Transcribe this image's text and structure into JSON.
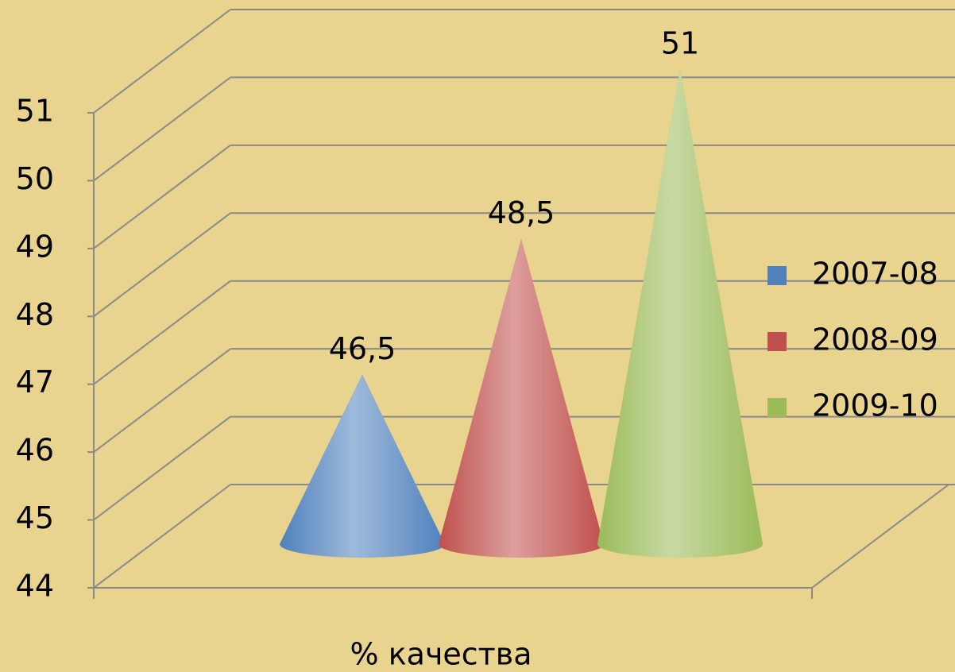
{
  "chart_data": {
    "type": "cone3d",
    "categories": [
      "% качества"
    ],
    "series": [
      {
        "name": "2007-08",
        "color": "#4f81bd",
        "values": [
          46.5
        ],
        "value_labels": [
          "46,5"
        ]
      },
      {
        "name": "2008-09",
        "color": "#c0504d",
        "values": [
          48.5
        ],
        "value_labels": [
          "48,5"
        ]
      },
      {
        "name": "2009-10",
        "color": "#9bbb59",
        "values": [
          51
        ],
        "value_labels": [
          "51"
        ]
      }
    ],
    "ylim": [
      44,
      51
    ],
    "yticks": [
      44,
      45,
      46,
      47,
      48,
      49,
      50,
      51
    ],
    "grid": true,
    "legend": "right"
  }
}
